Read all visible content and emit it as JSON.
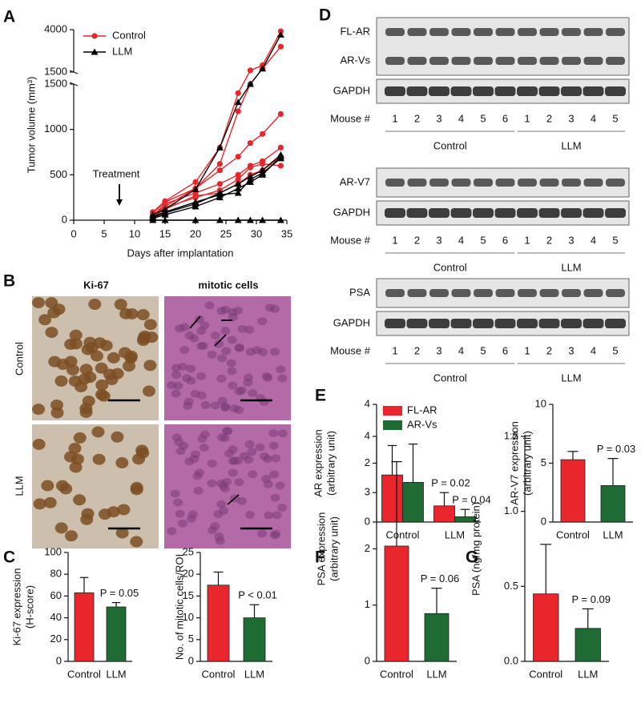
{
  "figure": {
    "panel_labels": [
      "A",
      "B",
      "C",
      "D",
      "E",
      "F",
      "G"
    ]
  },
  "images": {
    "columns": [
      "Ki-67",
      "mitotic cells"
    ],
    "rows": [
      "Control",
      "LLM"
    ]
  },
  "blots": [
    {
      "bands": [
        "FL-AR",
        "AR-Vs",
        "GAPDH"
      ],
      "lane_header": "Mouse #",
      "lanes": [
        1,
        2,
        3,
        4,
        5,
        6,
        1,
        2,
        3,
        4,
        5
      ],
      "groups": [
        "Control",
        "LLM"
      ]
    },
    {
      "bands": [
        "AR-V7",
        "GAPDH"
      ],
      "lane_header": "Mouse #",
      "lanes": [
        1,
        2,
        3,
        4,
        5,
        6,
        1,
        2,
        3,
        4,
        5
      ],
      "groups": [
        "Control",
        "LLM"
      ]
    },
    {
      "bands": [
        "PSA",
        "GAPDH"
      ],
      "lane_header": "Mouse #",
      "lanes": [
        1,
        2,
        3,
        4,
        5,
        6,
        1,
        2,
        3,
        4,
        5
      ],
      "groups": [
        "Control",
        "LLM"
      ]
    }
  ],
  "chart_data": [
    {
      "type": "line",
      "xlabel": "Days after implantation",
      "ylabel": "Tumor volume (mm³)",
      "x": [
        13,
        15,
        20,
        24,
        27,
        29,
        31,
        34
      ],
      "xlim": [
        0,
        35
      ],
      "xticks": [
        0,
        5,
        10,
        15,
        20,
        25,
        30,
        35
      ],
      "ylim": [
        0,
        1500
      ],
      "yticks": [
        0,
        500,
        1000,
        1500
      ],
      "ylim_upper": [
        1500,
        4000
      ],
      "yticks_upper": [
        1500,
        4000
      ],
      "legend": "upper left",
      "series": [
        {
          "name": "Control",
          "color": "#e8262b",
          "marker": "circle",
          "values": [
            [
              90,
              210,
              420,
              800,
              1400,
              1600,
              1900,
              3900
            ],
            [
              60,
              150,
              350,
              620,
              1200,
              1500,
              1700,
              3000
            ],
            [
              80,
              200,
              350,
              550,
              700,
              850,
              950,
              1170
            ],
            [
              50,
              180,
              300,
              400,
              500,
              600,
              650,
              800
            ],
            [
              40,
              120,
              270,
              300,
              400,
              500,
              550,
              700
            ],
            [
              60,
              140,
              250,
              330,
              450,
              580,
              620,
              600
            ]
          ]
        },
        {
          "name": "LLM",
          "color": "#000000",
          "marker": "triangle",
          "values": [
            [
              60,
              120,
              340,
              800,
              1300,
              1500,
              1700,
              3700
            ],
            [
              30,
              80,
              180,
              300,
              400,
              480,
              550,
              720
            ],
            [
              20,
              60,
              150,
              250,
              350,
              420,
              500,
              700
            ],
            [
              40,
              90,
              200,
              280,
              300,
              450,
              520,
              680
            ],
            [
              0,
              0,
              0,
              0,
              0,
              0,
              0,
              0
            ]
          ]
        }
      ],
      "annotations": [
        {
          "text": "Treatment",
          "x": 7.5
        }
      ]
    },
    {
      "type": "bar",
      "ylabel": [
        "Ki-67 expression",
        "(H-score)"
      ],
      "categories": [
        "Control",
        "LLM"
      ],
      "values": [
        63,
        50
      ],
      "errors": [
        14,
        4
      ],
      "colors": [
        "#e8262b",
        "#1e6b34"
      ],
      "ylim": [
        0,
        100
      ],
      "yticks": [
        0,
        20,
        40,
        60,
        80,
        100
      ],
      "annotations": [
        "P = 0.05"
      ]
    },
    {
      "type": "bar",
      "ylabel": [
        "No. of mitotic cells/ROI"
      ],
      "categories": [
        "Control",
        "LLM"
      ],
      "values": [
        17.5,
        10
      ],
      "errors": [
        3,
        3
      ],
      "colors": [
        "#e8262b",
        "#1e6b34"
      ],
      "ylim": [
        0,
        25
      ],
      "yticks": [
        0,
        5,
        10,
        15,
        20,
        25
      ],
      "annotations": [
        "P < 0.01"
      ]
    },
    {
      "type": "bar",
      "ylabel": [
        "AR expression",
        "(arbitrary unit)"
      ],
      "categories": [
        "Control",
        "LLM"
      ],
      "series": [
        {
          "name": "FL-AR",
          "color": "#e8262b",
          "values": [
            1.6,
            0.55
          ],
          "errors": [
            1.0,
            0.45
          ]
        },
        {
          "name": "AR-Vs",
          "color": "#1e6b34",
          "values": [
            1.35,
            0.18
          ],
          "errors": [
            1.3,
            0.25
          ]
        }
      ],
      "legend": "upper left",
      "ylim": [
        0,
        4
      ],
      "yticks": [
        0,
        2,
        4
      ],
      "annotations": [
        "P = 0.02",
        "P = 0.04"
      ]
    },
    {
      "type": "bar",
      "ylabel": [
        "AR-V7 expression",
        "(arbitrary unit)"
      ],
      "categories": [
        "Control",
        "LLM"
      ],
      "values": [
        5.3,
        3.1
      ],
      "errors": [
        0.7,
        2.3
      ],
      "colors": [
        "#e8262b",
        "#1e6b34"
      ],
      "ylim": [
        0,
        10
      ],
      "yticks": [
        0,
        5,
        10
      ],
      "annotations": [
        "P = 0.03"
      ]
    },
    {
      "type": "bar",
      "ylabel": [
        "PSA expression",
        "(arbitrary unit)"
      ],
      "categories": [
        "Control",
        "LLM"
      ],
      "values": [
        2.05,
        0.85
      ],
      "errors": [
        1.5,
        0.45
      ],
      "colors": [
        "#e8262b",
        "#1e6b34"
      ],
      "ylim": [
        0,
        4
      ],
      "yticks": [
        0,
        1,
        2,
        3,
        4
      ],
      "annotations": [
        "P = 0.06"
      ]
    },
    {
      "type": "bar",
      "ylabel": [
        "PSA (ng/mg protein)"
      ],
      "categories": [
        "Control",
        "LLM"
      ],
      "values": [
        0.45,
        0.22
      ],
      "errors": [
        0.33,
        0.13
      ],
      "colors": [
        "#e8262b",
        "#1e6b34"
      ],
      "ylim": [
        0,
        1.5
      ],
      "yticks": [
        {
          "value": 0,
          "label": "0.0"
        },
        0.5,
        {
          "value": 1,
          "label": "1.0"
        },
        1.5
      ],
      "annotations": [
        "P = 0.09"
      ]
    }
  ]
}
